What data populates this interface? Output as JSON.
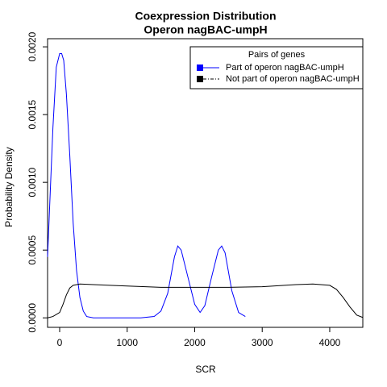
{
  "chart_data": {
    "type": "line",
    "title": [
      "Coexpression Distribution",
      "Operon nagBAC-umpH"
    ],
    "x_label": "SCR",
    "y_label": "Probability Density",
    "legend_title": "Pairs of genes",
    "legend_position": "top-right",
    "grid": false,
    "xlim": [
      -179,
      4490
    ],
    "xticks": [
      0,
      1000,
      2000,
      3000,
      4000
    ],
    "ylim": [
      -7e-05,
      0.00206
    ],
    "yticks": [
      {
        "value": 0,
        "label": "0.0000"
      },
      {
        "value": 0.0005,
        "label": "0.0005"
      },
      {
        "value": 0.001,
        "label": "0.0010"
      },
      {
        "value": 0.0015,
        "label": "0.0015"
      },
      {
        "value": 0.002,
        "label": "0.0020"
      }
    ],
    "series": [
      {
        "name": "Part of operon nagBAC-umpH",
        "color": "#0000ff",
        "x": [
          -179,
          -150,
          -100,
          -50,
          0,
          30,
          60,
          100,
          150,
          200,
          250,
          300,
          350,
          400,
          500,
          600,
          800,
          1000,
          1200,
          1400,
          1500,
          1600,
          1700,
          1750,
          1800,
          1900,
          2000,
          2080,
          2150,
          2250,
          2350,
          2400,
          2450,
          2550,
          2650,
          2750
        ],
        "values": [
          0.00045,
          0.0008,
          0.0014,
          0.00185,
          0.00195,
          0.00195,
          0.0019,
          0.00165,
          0.0012,
          0.0007,
          0.00035,
          0.00015,
          5e-05,
          1e-05,
          0,
          0,
          0,
          0,
          0,
          1e-05,
          5e-05,
          0.00018,
          0.00045,
          0.00053,
          0.0005,
          0.0003,
          0.0001,
          4e-05,
          9e-05,
          0.0003,
          0.0005,
          0.00053,
          0.00048,
          0.0002,
          4e-05,
          1e-05
        ]
      },
      {
        "name": "Not part of operon nagBAC-umpH",
        "color": "#000000",
        "x": [
          -179,
          -100,
          0,
          50,
          100,
          150,
          200,
          300,
          500,
          1000,
          1500,
          2000,
          2500,
          3000,
          3500,
          3750,
          4000,
          4100,
          4200,
          4300,
          4400,
          4490
        ],
        "values": [
          0,
          1e-05,
          4e-05,
          0.0001,
          0.00017,
          0.00022,
          0.00024,
          0.00025,
          0.000245,
          0.000235,
          0.000225,
          0.000225,
          0.000225,
          0.00023,
          0.000245,
          0.00025,
          0.00024,
          0.00021,
          0.00015,
          8e-05,
          2e-05,
          3e-06
        ]
      }
    ]
  }
}
